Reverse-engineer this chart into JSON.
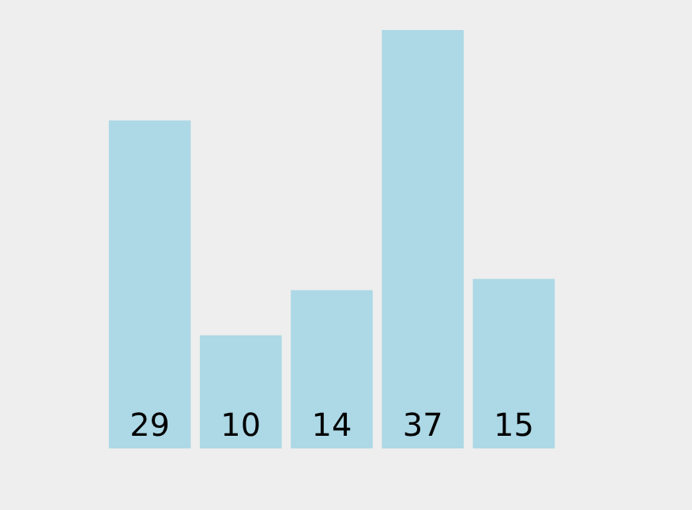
{
  "chart_data": {
    "type": "bar",
    "categories": [
      null,
      null,
      null,
      null,
      null
    ],
    "values": [
      29,
      10,
      14,
      37,
      15
    ],
    "color": "#add8e6",
    "data_labels": true,
    "grid": false
  }
}
